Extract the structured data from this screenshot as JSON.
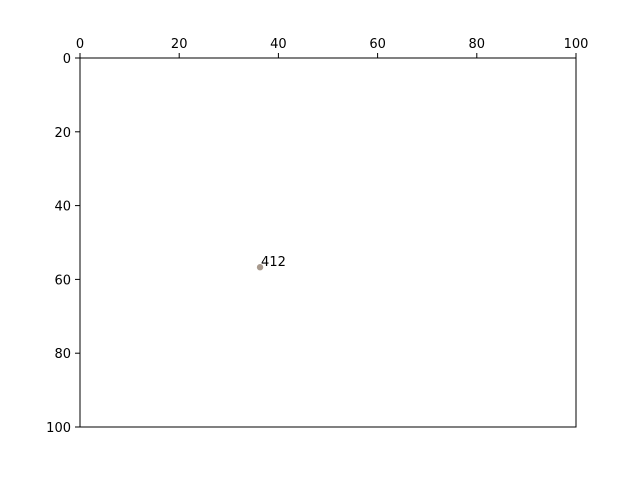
{
  "chart_data": {
    "type": "scatter",
    "title": "",
    "xlabel": "",
    "ylabel": "",
    "xlim": [
      0,
      100
    ],
    "ylim": [
      0,
      100
    ],
    "x_axis_position": "top",
    "y_axis_inverted": true,
    "grid": false,
    "x_ticks": [
      0,
      20,
      40,
      60,
      80,
      100
    ],
    "y_ticks": [
      0,
      20,
      40,
      60,
      80,
      100
    ],
    "points": [
      {
        "x": 36.3,
        "y": 56.7,
        "label": "412",
        "color": "#a89a8e"
      }
    ]
  }
}
